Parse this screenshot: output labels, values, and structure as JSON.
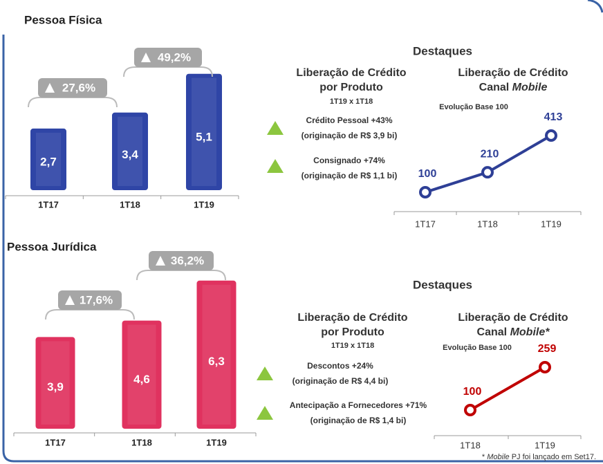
{
  "sections": [
    {
      "title": "Pessoa Física",
      "highlights": "Destaques",
      "product_title": "Liberação de Crédito",
      "product_title2": "por Produto",
      "product_subtitle": "1T19 x 1T18",
      "items": [
        {
          "text": "Crédito Pessoal +43%",
          "detail": "(originação de R$ 3,9 bi)"
        },
        {
          "text": "Consignado +74%",
          "detail": "(originação de R$ 1,1 bi)"
        }
      ]
    },
    {
      "title": "Pessoa Jurídica",
      "highlights": "Destaques",
      "product_title": "Liberação de Crédito",
      "product_title2": "por Produto",
      "product_subtitle": "1T19 x 1T18",
      "items": [
        {
          "text": "Descontos +24%",
          "detail": "(originação de R$ 4,4 bi)"
        },
        {
          "text": "Antecipação a Fornecedores +71%",
          "detail": "(originação de R$ 1,4 bi)"
        }
      ]
    }
  ],
  "chart_data": [
    {
      "type": "bar",
      "categories": [
        "1T17",
        "1T18",
        "1T19"
      ],
      "values": [
        2.7,
        3.4,
        5.1
      ],
      "value_labels": [
        "2,7",
        "3,4",
        "5,1"
      ],
      "color": "#2f45a6",
      "annotations": [
        "27,6%",
        "49,2%"
      ]
    },
    {
      "type": "line",
      "title": "Liberação de Crédito",
      "title_line2": "Canal",
      "title_italic": "Mobile",
      "subtitle": "Evolução Base 100",
      "categories": [
        "1T17",
        "1T18",
        "1T19"
      ],
      "values": [
        100,
        210,
        413
      ],
      "color": "#2e3f96"
    },
    {
      "type": "bar",
      "categories": [
        "1T17",
        "1T18",
        "1T19"
      ],
      "values": [
        3.9,
        4.6,
        6.3
      ],
      "value_labels": [
        "3,9",
        "4,6",
        "6,3"
      ],
      "color": "#e0325f",
      "annotations": [
        "17,6%",
        "36,2%"
      ]
    },
    {
      "type": "line",
      "title": "Liberação de Crédito",
      "title_line2": "Canal",
      "title_italic": "Mobile*",
      "subtitle": "Evolução Base 100",
      "categories": [
        "1T18",
        "1T19"
      ],
      "values": [
        100,
        259
      ],
      "color": "#c00000"
    }
  ],
  "footnote": {
    "star": "*",
    "italic": "Mobile",
    "text": "PJ foi lançado em Set17."
  }
}
